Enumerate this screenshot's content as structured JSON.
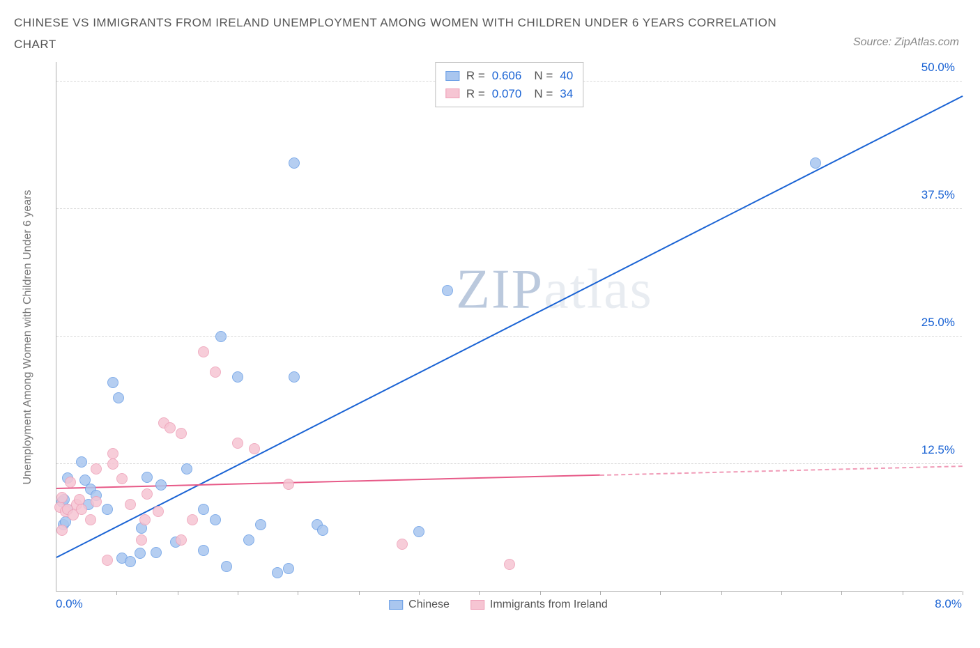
{
  "title": "CHINESE VS IMMIGRANTS FROM IRELAND UNEMPLOYMENT AMONG WOMEN WITH CHILDREN UNDER 6 YEARS CORRELATION CHART",
  "source": "Source: ZipAtlas.com",
  "ylabel": "Unemployment Among Women with Children Under 6 years",
  "watermark_dark": "ZIP",
  "watermark_light": "atlas",
  "chart": {
    "type": "scatter",
    "xlim": [
      0,
      8
    ],
    "ylim": [
      0,
      52
    ],
    "x_min_label": "0.0%",
    "x_max_label": "8.0%",
    "x_label_color": "#1a63d4",
    "xtick_positions": [
      0.53,
      1.07,
      1.6,
      2.13,
      2.67,
      3.2,
      3.73,
      4.27,
      4.8,
      5.33,
      5.87,
      6.4,
      6.93,
      7.47,
      8.0
    ],
    "yticks": [
      {
        "v": 12.5,
        "label": "12.5%"
      },
      {
        "v": 25.0,
        "label": "25.0%"
      },
      {
        "v": 37.5,
        "label": "37.5%"
      },
      {
        "v": 50.0,
        "label": "50.0%"
      }
    ],
    "ytick_color": "#1a63d4",
    "grid_color": "#d8d8d8",
    "marker_radius": 8,
    "marker_stroke_opacity": 0.8,
    "marker_fill_opacity": 0.25,
    "series": [
      {
        "name": "Chinese",
        "color_line": "#1a63d4",
        "color_fill": "#a9c6ef",
        "color_border": "#6b9fe6",
        "R": "0.606",
        "N": "40",
        "trend": {
          "x1": 0.0,
          "y1": 3.2,
          "x2": 8.0,
          "y2": 48.5,
          "solid_until_x": 8.0
        },
        "points": [
          [
            0.05,
            8.8
          ],
          [
            0.06,
            6.5
          ],
          [
            0.07,
            9.0
          ],
          [
            0.1,
            11.1
          ],
          [
            0.1,
            8.0
          ],
          [
            0.08,
            6.8
          ],
          [
            0.22,
            12.7
          ],
          [
            0.25,
            10.9
          ],
          [
            0.3,
            10.0
          ],
          [
            0.28,
            8.5
          ],
          [
            0.35,
            9.4
          ],
          [
            0.45,
            8.0
          ],
          [
            0.5,
            20.5
          ],
          [
            0.55,
            19.0
          ],
          [
            0.75,
            6.2
          ],
          [
            0.74,
            3.7
          ],
          [
            0.58,
            3.2
          ],
          [
            0.65,
            2.9
          ],
          [
            0.8,
            11.2
          ],
          [
            0.92,
            10.4
          ],
          [
            0.88,
            3.8
          ],
          [
            1.05,
            4.8
          ],
          [
            1.3,
            4.0
          ],
          [
            1.15,
            12.0
          ],
          [
            1.3,
            8.0
          ],
          [
            1.4,
            7.0
          ],
          [
            1.45,
            25.0
          ],
          [
            1.5,
            2.4
          ],
          [
            1.6,
            21.0
          ],
          [
            1.7,
            5.0
          ],
          [
            1.8,
            6.5
          ],
          [
            1.95,
            1.8
          ],
          [
            2.05,
            2.2
          ],
          [
            2.1,
            42.0
          ],
          [
            2.1,
            21.0
          ],
          [
            2.3,
            6.5
          ],
          [
            2.35,
            6.0
          ],
          [
            3.2,
            5.8
          ],
          [
            3.45,
            29.5
          ],
          [
            6.7,
            42.0
          ]
        ]
      },
      {
        "name": "Immigrants from Ireland",
        "color_line": "#e75a88",
        "color_fill": "#f6c5d3",
        "color_border": "#eea0b8",
        "R": "0.070",
        "N": "34",
        "trend": {
          "x1": 0.0,
          "y1": 10.0,
          "x2": 8.0,
          "y2": 12.2,
          "solid_until_x": 4.8
        },
        "points": [
          [
            0.03,
            8.2
          ],
          [
            0.05,
            9.2
          ],
          [
            0.05,
            6.0
          ],
          [
            0.08,
            7.8
          ],
          [
            0.1,
            8.0
          ],
          [
            0.12,
            10.7
          ],
          [
            0.15,
            7.5
          ],
          [
            0.18,
            8.5
          ],
          [
            0.2,
            9.0
          ],
          [
            0.22,
            8.0
          ],
          [
            0.3,
            7.0
          ],
          [
            0.35,
            8.8
          ],
          [
            0.35,
            12.0
          ],
          [
            0.45,
            3.0
          ],
          [
            0.5,
            13.5
          ],
          [
            0.5,
            12.5
          ],
          [
            0.58,
            11.0
          ],
          [
            0.65,
            8.5
          ],
          [
            0.75,
            5.0
          ],
          [
            0.78,
            7.0
          ],
          [
            0.8,
            9.5
          ],
          [
            0.9,
            7.8
          ],
          [
            0.95,
            16.5
          ],
          [
            1.0,
            16.0
          ],
          [
            1.1,
            5.0
          ],
          [
            1.1,
            15.5
          ],
          [
            1.2,
            7.0
          ],
          [
            1.3,
            23.5
          ],
          [
            1.4,
            21.5
          ],
          [
            1.6,
            14.5
          ],
          [
            1.75,
            14.0
          ],
          [
            2.05,
            10.5
          ],
          [
            3.05,
            4.6
          ],
          [
            4.0,
            2.6
          ]
        ]
      }
    ]
  },
  "bottom_legend": [
    {
      "label": "Chinese",
      "fill": "#a9c6ef",
      "border": "#6b9fe6"
    },
    {
      "label": "Immigrants from Ireland",
      "fill": "#f6c5d3",
      "border": "#eea0b8"
    }
  ]
}
